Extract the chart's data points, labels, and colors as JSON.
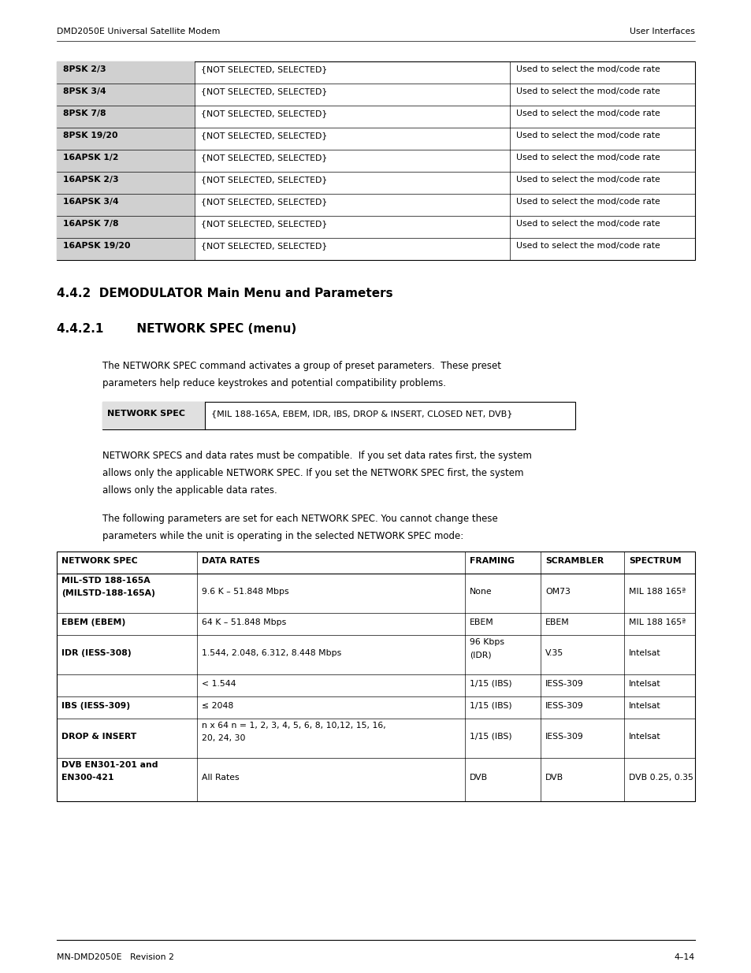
{
  "page_width": 9.54,
  "page_height": 12.35,
  "bg_color": "#ffffff",
  "header_left": "DMD2050E Universal Satellite Modem",
  "header_right": "User Interfaces",
  "footer_left": "MN-DMD2050E   Revision 2",
  "footer_right": "4–14",
  "section_title": "4.4.2  DEMODULATOR Main Menu and Parameters",
  "subsection_title": "4.4.2.1        NETWORK SPEC (menu)",
  "para1_line1": "The NETWORK SPEC command activates a group of preset parameters.  These preset",
  "para1_line2": "parameters help reduce keystrokes and potential compatibility problems.",
  "network_spec_label": "NETWORK SPEC",
  "network_spec_value": "{MIL 188-165A, EBEM, IDR, IBS, DROP & INSERT, CLOSED NET, DVB}",
  "para2_line1": "NETWORK SPECS and data rates must be compatible.  If you set data rates first, the system",
  "para2_line2": "allows only the applicable NETWORK SPEC. If you set the NETWORK SPEC first, the system",
  "para2_line3": "allows only the applicable data rates.",
  "para3_line1": "The following parameters are set for each NETWORK SPEC. You cannot change these",
  "para3_line2": "parameters while the unit is operating in the selected NETWORK SPEC mode:",
  "top_table_rows": [
    [
      "8PSK 2/3",
      "{NOT SELECTED, SELECTED}",
      "Used to select the mod/code rate"
    ],
    [
      "8PSK 3/4",
      "{NOT SELECTED, SELECTED}",
      "Used to select the mod/code rate"
    ],
    [
      "8PSK 7/8",
      "{NOT SELECTED, SELECTED}",
      "Used to select the mod/code rate"
    ],
    [
      "8PSK 19/20",
      "{NOT SELECTED, SELECTED}",
      "Used to select the mod/code rate"
    ],
    [
      "16APSK 1/2",
      "{NOT SELECTED, SELECTED}",
      "Used to select the mod/code rate"
    ],
    [
      "16APSK 2/3",
      "{NOT SELECTED, SELECTED}",
      "Used to select the mod/code rate"
    ],
    [
      "16APSK 3/4",
      "{NOT SELECTED, SELECTED}",
      "Used to select the mod/code rate"
    ],
    [
      "16APSK 7/8",
      "{NOT SELECTED, SELECTED}",
      "Used to select the mod/code rate"
    ],
    [
      "16APSK 19/20",
      "{NOT SELECTED, SELECTED}",
      "Used to select the mod/code rate"
    ]
  ],
  "bottom_table_headers": [
    "NETWORK SPEC",
    "DATA RATES",
    "FRAMING",
    "SCRAMBLER",
    "SPECTRUM"
  ],
  "bottom_table_rows": [
    {
      "cells": [
        "MIL-STD 188-165A\n(MILSTD-188-165A)",
        "9.6 K – 51.848 Mbps",
        "None",
        "OM73",
        "MIL 188 165ª"
      ],
      "bold_col0": true
    },
    {
      "cells": [
        "EBEM (EBEM)",
        "64 K – 51.848 Mbps",
        "EBEM",
        "EBEM",
        "MIL 188 165ª"
      ],
      "bold_col0": true
    },
    {
      "cells": [
        "IDR (IESS-308)",
        "1.544, 2.048, 6.312, 8.448 Mbps",
        "96 Kbps\n(IDR)",
        "V.35",
        "Intelsat"
      ],
      "bold_col0": true
    },
    {
      "cells": [
        "",
        "< 1.544",
        "1/15 (IBS)",
        "IESS-309",
        "Intelsat"
      ],
      "bold_col0": false
    },
    {
      "cells": [
        "IBS (IESS-309)",
        "≤ 2048",
        "1/15 (IBS)",
        "IESS-309",
        "Intelsat"
      ],
      "bold_col0": true
    },
    {
      "cells": [
        "DROP & INSERT",
        "n x 64 n = 1, 2, 3, 4, 5, 6, 8, 10,12, 15, 16,\n20, 24, 30",
        "1/15 (IBS)",
        "IESS-309",
        "Intelsat"
      ],
      "bold_col0": true
    },
    {
      "cells": [
        "DVB EN301-201 and\nEN300-421",
        "All Rates",
        "DVB",
        "DVB",
        "DVB 0.25, 0.35"
      ],
      "bold_col0": true
    }
  ]
}
